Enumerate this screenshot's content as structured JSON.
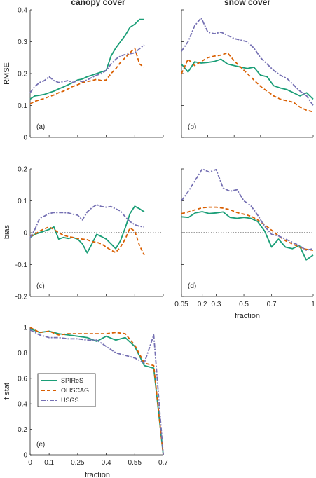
{
  "figure": {
    "col_titles": [
      "canopy cover",
      "snow cover"
    ],
    "ylabels": [
      "RMSE",
      "bias",
      "f stat"
    ],
    "shared_xlabel": "fraction",
    "colors": {
      "SPIReS": "#1a9e77",
      "OLISCAG": "#d95f02",
      "USGS": "#7570b3",
      "zero_line": "#808080",
      "axis": "#262626"
    },
    "legend_labels": [
      "SPIReS",
      "OLISCAG",
      "USGS"
    ]
  },
  "chart_data": [
    {
      "id": "a",
      "panel_label": "(a)",
      "type": "line",
      "xlim": [
        0,
        0.7
      ],
      "ylim": [
        0,
        0.4
      ],
      "yticks": [
        0,
        0.1,
        0.2,
        0.3,
        0.4
      ],
      "ytick_labels": [
        "0",
        "0.1",
        "0.2",
        "0.3",
        "0.4"
      ],
      "x": [
        0,
        0.025,
        0.05,
        0.075,
        0.1,
        0.125,
        0.15,
        0.175,
        0.2,
        0.225,
        0.25,
        0.275,
        0.3,
        0.325,
        0.35,
        0.375,
        0.4,
        0.425,
        0.45,
        0.475,
        0.5,
        0.525,
        0.55,
        0.575,
        0.6
      ],
      "series": [
        {
          "name": "SPIReS",
          "values": [
            0.12,
            0.13,
            0.132,
            0.135,
            0.14,
            0.145,
            0.152,
            0.158,
            0.165,
            0.172,
            0.18,
            0.183,
            0.19,
            0.195,
            0.2,
            0.205,
            0.21,
            0.255,
            0.28,
            0.3,
            0.32,
            0.345,
            0.355,
            0.37,
            0.37
          ]
        },
        {
          "name": "OLISCAG",
          "values": [
            0.105,
            0.113,
            0.118,
            0.122,
            0.128,
            0.133,
            0.14,
            0.145,
            0.152,
            0.16,
            0.165,
            0.172,
            0.175,
            0.178,
            0.182,
            0.178,
            0.18,
            0.2,
            0.215,
            0.235,
            0.25,
            0.265,
            0.28,
            0.23,
            0.22
          ]
        },
        {
          "name": "USGS",
          "values": [
            0.14,
            0.16,
            0.172,
            0.178,
            0.19,
            0.178,
            0.172,
            0.175,
            0.178,
            0.172,
            0.178,
            0.175,
            0.18,
            0.188,
            0.195,
            0.2,
            0.21,
            0.23,
            0.245,
            0.255,
            0.26,
            0.262,
            0.265,
            0.278,
            0.29
          ]
        }
      ]
    },
    {
      "id": "b",
      "panel_label": "(b)",
      "type": "line",
      "xlim": [
        0,
        1
      ],
      "ylim": [
        0,
        0.4
      ],
      "yticks": [
        0,
        0.1,
        0.2,
        0.3,
        0.4
      ],
      "ytick_labels": [
        "",
        "",
        "",
        "",
        ""
      ],
      "x": [
        0,
        0.05,
        0.1,
        0.15,
        0.2,
        0.25,
        0.3,
        0.35,
        0.4,
        0.45,
        0.5,
        0.55,
        0.6,
        0.65,
        0.7,
        0.75,
        0.8,
        0.85,
        0.9,
        0.95,
        1.0
      ],
      "series": [
        {
          "name": "SPIReS",
          "values": [
            0.23,
            0.205,
            0.237,
            0.233,
            0.235,
            0.238,
            0.245,
            0.23,
            0.225,
            0.22,
            0.216,
            0.22,
            0.195,
            0.19,
            0.162,
            0.155,
            0.15,
            0.14,
            0.13,
            0.14,
            0.12
          ]
        },
        {
          "name": "OLISCAG",
          "values": [
            0.2,
            0.245,
            0.225,
            0.238,
            0.25,
            0.255,
            0.258,
            0.265,
            0.24,
            0.22,
            0.2,
            0.18,
            0.16,
            0.145,
            0.13,
            0.12,
            0.115,
            0.11,
            0.095,
            0.085,
            0.08
          ]
        },
        {
          "name": "USGS",
          "values": [
            0.27,
            0.3,
            0.35,
            0.375,
            0.33,
            0.325,
            0.33,
            0.32,
            0.31,
            0.305,
            0.3,
            0.28,
            0.25,
            0.23,
            0.21,
            0.195,
            0.185,
            0.165,
            0.145,
            0.13,
            0.1
          ]
        }
      ]
    },
    {
      "id": "c",
      "panel_label": "(c)",
      "type": "line",
      "xlim": [
        0,
        0.7
      ],
      "ylim": [
        -0.2,
        0.2
      ],
      "yticks": [
        -0.2,
        -0.1,
        0,
        0.1,
        0.2
      ],
      "ytick_labels": [
        "-0.2",
        "-0.1",
        "0",
        "0.1",
        "0.2"
      ],
      "zero_line": true,
      "x": [
        0,
        0.025,
        0.05,
        0.075,
        0.1,
        0.125,
        0.15,
        0.175,
        0.2,
        0.225,
        0.25,
        0.275,
        0.3,
        0.325,
        0.35,
        0.375,
        0.4,
        0.425,
        0.45,
        0.475,
        0.5,
        0.525,
        0.55,
        0.575,
        0.6
      ],
      "series": [
        {
          "name": "SPIReS",
          "values": [
            -0.015,
            -0.005,
            0.0,
            0.005,
            0.01,
            0.018,
            -0.02,
            -0.015,
            -0.018,
            -0.015,
            -0.02,
            -0.035,
            -0.063,
            -0.035,
            -0.005,
            -0.012,
            -0.02,
            -0.035,
            -0.05,
            -0.025,
            0.015,
            0.06,
            0.083,
            0.075,
            0.065
          ]
        },
        {
          "name": "OLISCAG",
          "values": [
            -0.012,
            -0.005,
            0.005,
            0.012,
            0.018,
            0.01,
            0.0,
            -0.008,
            -0.012,
            -0.015,
            -0.018,
            -0.02,
            -0.022,
            -0.028,
            -0.03,
            -0.035,
            -0.045,
            -0.055,
            -0.062,
            -0.045,
            -0.02,
            0.015,
            0.005,
            -0.04,
            -0.07
          ]
        },
        {
          "name": "USGS",
          "values": [
            -0.015,
            0.01,
            0.045,
            0.052,
            0.06,
            0.063,
            0.063,
            0.063,
            0.062,
            0.058,
            0.055,
            0.04,
            0.065,
            0.078,
            0.088,
            0.082,
            0.08,
            0.082,
            0.075,
            0.068,
            0.05,
            0.035,
            0.025,
            0.02,
            0.018
          ]
        }
      ]
    },
    {
      "id": "d",
      "panel_label": "(d)",
      "type": "line",
      "xlim": [
        0.05,
        1
      ],
      "ylim": [
        -0.2,
        0.2
      ],
      "xticks": [
        0.05,
        0.2,
        0.3,
        0.5,
        0.7,
        1
      ],
      "xtick_labels": [
        "0.05",
        "0.2",
        "0.3",
        "0.5",
        "0.7",
        "1"
      ],
      "yticks": [
        -0.2,
        -0.1,
        0,
        0.1,
        0.2
      ],
      "ytick_labels": [
        "",
        "",
        "",
        "",
        ""
      ],
      "zero_line": true,
      "x": [
        0.05,
        0.1,
        0.15,
        0.2,
        0.25,
        0.3,
        0.35,
        0.4,
        0.45,
        0.5,
        0.55,
        0.6,
        0.65,
        0.7,
        0.75,
        0.8,
        0.85,
        0.9,
        0.95,
        1.0
      ],
      "series": [
        {
          "name": "SPIReS",
          "values": [
            0.05,
            0.048,
            0.062,
            0.066,
            0.06,
            0.062,
            0.065,
            0.048,
            0.045,
            0.048,
            0.045,
            0.035,
            0.005,
            -0.045,
            -0.02,
            -0.045,
            -0.05,
            -0.04,
            -0.085,
            -0.07
          ]
        },
        {
          "name": "OLISCAG",
          "values": [
            0.06,
            0.065,
            0.072,
            0.078,
            0.08,
            0.08,
            0.077,
            0.072,
            0.063,
            0.058,
            0.052,
            0.04,
            0.025,
            0.008,
            -0.01,
            -0.025,
            -0.035,
            -0.045,
            -0.052,
            -0.055
          ]
        },
        {
          "name": "USGS",
          "values": [
            0.1,
            0.13,
            0.165,
            0.2,
            0.19,
            0.198,
            0.14,
            0.13,
            0.135,
            0.1,
            0.085,
            0.055,
            0.02,
            -0.005,
            -0.01,
            -0.02,
            -0.03,
            -0.04,
            -0.055,
            -0.05
          ]
        }
      ]
    },
    {
      "id": "e",
      "panel_label": "(e)",
      "type": "line",
      "xlim": [
        0,
        0.7
      ],
      "ylim": [
        0,
        1
      ],
      "xticks": [
        0,
        0.1,
        0.25,
        0.4,
        0.55,
        0.7
      ],
      "xtick_labels": [
        "0",
        "0.1",
        "0.25",
        "0.4",
        "0.55",
        "0.7"
      ],
      "yticks": [
        0,
        0.2,
        0.4,
        0.6,
        0.8,
        1
      ],
      "ytick_labels": [
        "0",
        "0.2",
        "0.4",
        "0.6",
        "0.8",
        "1"
      ],
      "x": [
        0,
        0.05,
        0.1,
        0.15,
        0.2,
        0.25,
        0.3,
        0.35,
        0.4,
        0.45,
        0.5,
        0.55,
        0.6,
        0.65,
        0.7
      ],
      "series": [
        {
          "name": "SPIReS",
          "values": [
            0.99,
            0.96,
            0.97,
            0.95,
            0.94,
            0.93,
            0.92,
            0.89,
            0.93,
            0.9,
            0.92,
            0.85,
            0.7,
            0.68,
            0.0
          ]
        },
        {
          "name": "OLISCAG",
          "values": [
            1.0,
            0.96,
            0.97,
            0.94,
            0.95,
            0.95,
            0.95,
            0.95,
            0.95,
            0.96,
            0.95,
            0.86,
            0.72,
            0.7,
            0.0
          ]
        },
        {
          "name": "USGS",
          "values": [
            0.98,
            0.94,
            0.92,
            0.92,
            0.91,
            0.91,
            0.9,
            0.9,
            0.85,
            0.8,
            0.78,
            0.76,
            0.72,
            0.94,
            0.0
          ]
        }
      ]
    }
  ]
}
